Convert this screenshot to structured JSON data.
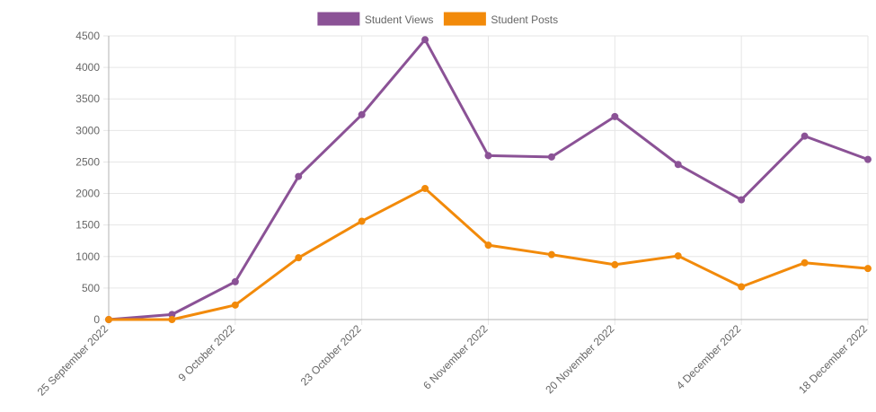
{
  "colors": {
    "grid": "#e6e6e6",
    "axis": "#b3b3b3",
    "tick_text": "#666666",
    "legend_text": "#666666"
  },
  "chart_data": {
    "type": "line",
    "title": "",
    "xlabel": "",
    "ylabel": "",
    "legend_position": "top-center",
    "grid": true,
    "ylim": [
      0,
      4500
    ],
    "y_ticks": [
      0,
      500,
      1000,
      1500,
      2000,
      2500,
      3000,
      3500,
      4000,
      4500
    ],
    "x": [
      "2022-09-25",
      "2022-10-02",
      "2022-10-09",
      "2022-10-16",
      "2022-10-23",
      "2022-10-30",
      "2022-11-06",
      "2022-11-13",
      "2022-11-20",
      "2022-11-27",
      "2022-12-04",
      "2022-12-11",
      "2022-12-18"
    ],
    "x_tick_labels": [
      "25 September 2022",
      "9 October 2022",
      "23 October 2022",
      "6 November 2022",
      "20 November 2022",
      "4 December 2022",
      "18 December 2022"
    ],
    "series": [
      {
        "name": "Student Views",
        "color": "#8b5296",
        "values": [
          0,
          80,
          600,
          2270,
          3250,
          4440,
          2600,
          2580,
          3220,
          2460,
          1900,
          2910,
          2540
        ]
      },
      {
        "name": "Student Posts",
        "color": "#f28a0a",
        "values": [
          0,
          0,
          230,
          980,
          1560,
          2080,
          1180,
          1030,
          870,
          1010,
          520,
          900,
          810
        ]
      }
    ]
  }
}
